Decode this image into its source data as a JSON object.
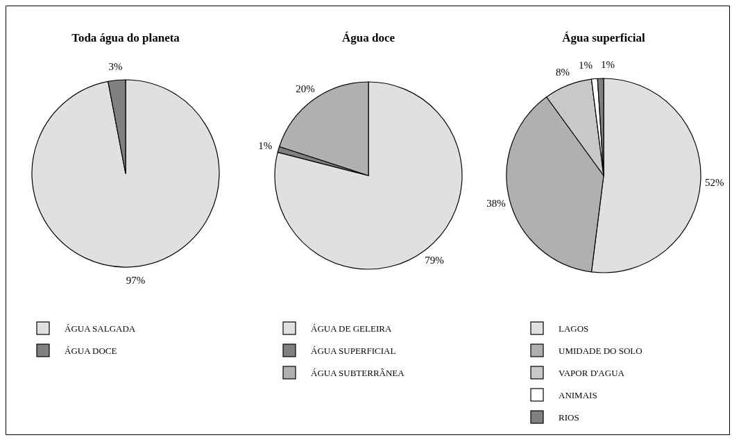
{
  "chart_data": [
    {
      "type": "pie",
      "title": "Toda água do planeta",
      "categories": [
        "ÁGUA SALGADA",
        "ÁGUA DOCE"
      ],
      "values": [
        97,
        3
      ],
      "value_labels": [
        "97%",
        "3%"
      ],
      "colors": [
        "#e0e0e0",
        "#808080"
      ],
      "legend": "bottom"
    },
    {
      "type": "pie",
      "title": "Água doce",
      "categories": [
        "ÁGUA DE GELEIRA",
        "ÁGUA SUPERFICIAL",
        "ÁGUA SUBTERRÂNEA"
      ],
      "values": [
        79,
        1,
        20
      ],
      "value_labels": [
        "79%",
        "1%",
        "20%"
      ],
      "colors": [
        "#e0e0e0",
        "#808080",
        "#b0b0b0"
      ],
      "legend": "bottom"
    },
    {
      "type": "pie",
      "title": "Água superficial",
      "categories": [
        "LAGOS",
        "UMIDADE DO SOLO",
        "VAPOR D'AGUA",
        "ANIMAIS",
        "RIOS"
      ],
      "values": [
        52,
        38,
        8,
        1,
        1
      ],
      "value_labels": [
        "52%",
        "38%",
        "8%",
        "1%",
        "1%"
      ],
      "colors": [
        "#e0e0e0",
        "#b0b0b0",
        "#c8c8c8",
        "#ffffff",
        "#808080"
      ],
      "legend": "bottom"
    }
  ]
}
